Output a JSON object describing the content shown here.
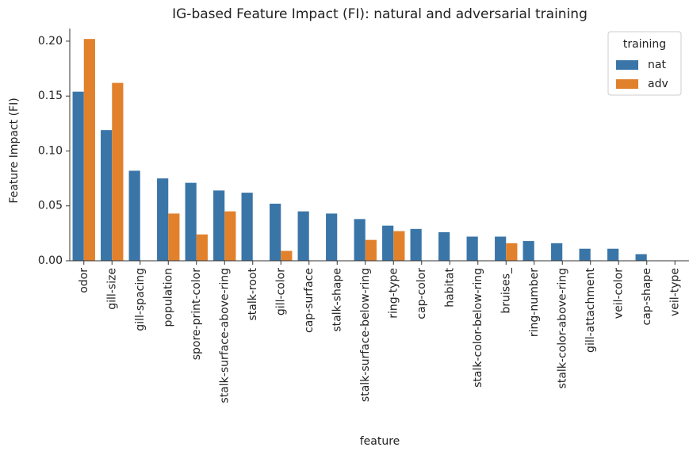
{
  "chart_data": {
    "type": "bar",
    "title": "IG-based Feature Impact (FI): natural and adversarial training",
    "x_label": "feature",
    "y_label": "Feature Impact (FI)",
    "categories": [
      "odor",
      "gill-size",
      "gill-spacing",
      "population",
      "spore-print-color",
      "stalk-surface-above-ring",
      "stalk-root",
      "gill-color",
      "cap-surface",
      "stalk-shape",
      "stalk-surface-below-ring",
      "ring-type",
      "cap-color",
      "habitat",
      "stalk-color-below-ring",
      "bruises_",
      "ring-number",
      "stalk-color-above-ring",
      "gill-attachment",
      "veil-color",
      "cap-shape",
      "veil-type"
    ],
    "series": [
      {
        "name": "nat",
        "color": "#3a75a8",
        "values": [
          0.154,
          0.119,
          0.082,
          0.075,
          0.071,
          0.064,
          0.062,
          0.052,
          0.045,
          0.043,
          0.038,
          0.032,
          0.029,
          0.026,
          0.022,
          0.022,
          0.018,
          0.016,
          0.011,
          0.011,
          0.006,
          0
        ]
      },
      {
        "name": "adv",
        "color": "#e1812c",
        "values": [
          0.202,
          0.162,
          0,
          0.043,
          0.024,
          0.045,
          0,
          0.009,
          0,
          0,
          0.019,
          0.027,
          0,
          0,
          0,
          0.016,
          0,
          0,
          0,
          0,
          0,
          0
        ]
      }
    ],
    "ylim": [
      0,
      0.2115
    ],
    "yticks": [
      {
        "value": 0,
        "label": "0.00"
      },
      {
        "value": 0.05,
        "label": "0.05"
      },
      {
        "value": 0.1,
        "label": "0.10"
      },
      {
        "value": 0.15,
        "label": "0.15"
      },
      {
        "value": 0.2,
        "label": "0.20"
      }
    ],
    "legend_title": "training",
    "legend": "upper right",
    "grid": false
  }
}
